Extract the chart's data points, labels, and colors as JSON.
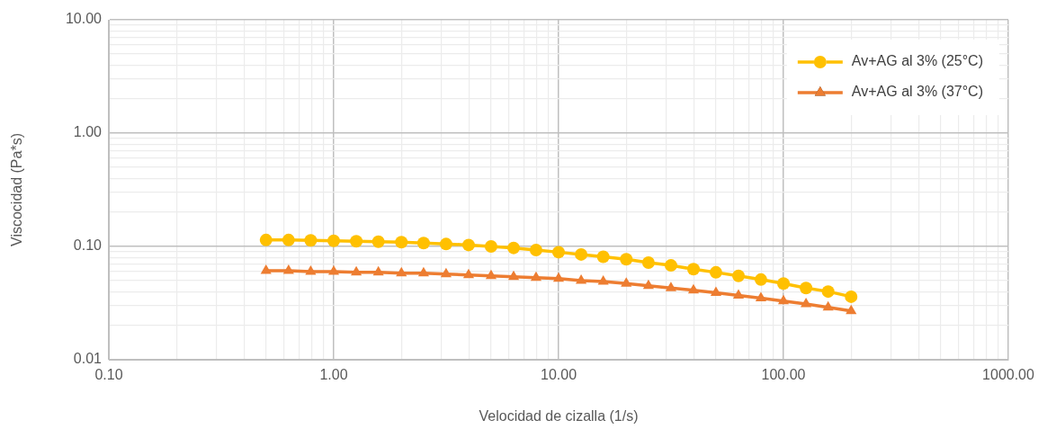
{
  "chart_data": {
    "type": "line",
    "xlabel": "Velocidad de cizalla (1/s)",
    "ylabel": "Viscocidad (Pa*s)",
    "x": [
      0.5,
      0.63,
      0.79,
      1,
      1.26,
      1.58,
      2,
      2.51,
      3.16,
      3.98,
      5.01,
      6.31,
      7.94,
      10,
      12.6,
      15.8,
      20,
      25.1,
      31.6,
      39.8,
      50.1,
      63.1,
      79.4,
      100,
      126,
      158,
      200
    ],
    "series": [
      {
        "name": "Av+AG al 3% (25°C)",
        "color": "#ffc000",
        "marker": "circle",
        "values": [
          0.114,
          0.114,
          0.113,
          0.112,
          0.111,
          0.11,
          0.109,
          0.107,
          0.105,
          0.103,
          0.1,
          0.097,
          0.093,
          0.089,
          0.085,
          0.081,
          0.077,
          0.072,
          0.068,
          0.063,
          0.059,
          0.055,
          0.051,
          0.047,
          0.043,
          0.04,
          0.036
        ]
      },
      {
        "name": "Av+AG al 3% (37°C)",
        "color": "#ed7d31",
        "marker": "triangle",
        "values": [
          0.061,
          0.061,
          0.06,
          0.06,
          0.059,
          0.059,
          0.058,
          0.058,
          0.057,
          0.056,
          0.055,
          0.054,
          0.053,
          0.052,
          0.05,
          0.049,
          0.047,
          0.045,
          0.043,
          0.041,
          0.039,
          0.037,
          0.035,
          0.033,
          0.031,
          0.029,
          0.027
        ]
      }
    ],
    "log": "xy",
    "grid": true,
    "legend": "top right",
    "xlim": [
      0.1,
      1000
    ],
    "ylim": [
      0.01,
      10
    ],
    "xticks": [
      {
        "value": 0.1,
        "label": "0.10"
      },
      {
        "value": 0.2,
        "label": null
      },
      {
        "value": 0.3,
        "label": null
      },
      {
        "value": 0.4,
        "label": null
      },
      {
        "value": 0.5,
        "label": null
      },
      {
        "value": 0.6,
        "label": null
      },
      {
        "value": 0.7,
        "label": null
      },
      {
        "value": 0.8,
        "label": null
      },
      {
        "value": 0.9,
        "label": null
      },
      {
        "value": 1,
        "label": "1.00"
      },
      {
        "value": 2,
        "label": null
      },
      {
        "value": 3,
        "label": null
      },
      {
        "value": 4,
        "label": null
      },
      {
        "value": 5,
        "label": null
      },
      {
        "value": 6,
        "label": null
      },
      {
        "value": 7,
        "label": null
      },
      {
        "value": 8,
        "label": null
      },
      {
        "value": 9,
        "label": null
      },
      {
        "value": 10,
        "label": "10.00"
      },
      {
        "value": 20,
        "label": null
      },
      {
        "value": 30,
        "label": null
      },
      {
        "value": 40,
        "label": null
      },
      {
        "value": 50,
        "label": null
      },
      {
        "value": 60,
        "label": null
      },
      {
        "value": 70,
        "label": null
      },
      {
        "value": 80,
        "label": null
      },
      {
        "value": 90,
        "label": null
      },
      {
        "value": 100,
        "label": "100.00"
      },
      {
        "value": 200,
        "label": null
      },
      {
        "value": 300,
        "label": null
      },
      {
        "value": 400,
        "label": null
      },
      {
        "value": 500,
        "label": null
      },
      {
        "value": 600,
        "label": null
      },
      {
        "value": 700,
        "label": null
      },
      {
        "value": 800,
        "label": null
      },
      {
        "value": 900,
        "label": null
      },
      {
        "value": 1000,
        "label": "1000.00"
      }
    ],
    "yticks": [
      {
        "value": 0.01,
        "label": "0.01"
      },
      {
        "value": 0.02,
        "label": null
      },
      {
        "value": 0.03,
        "label": null
      },
      {
        "value": 0.04,
        "label": null
      },
      {
        "value": 0.05,
        "label": null
      },
      {
        "value": 0.06,
        "label": null
      },
      {
        "value": 0.07,
        "label": null
      },
      {
        "value": 0.08,
        "label": null
      },
      {
        "value": 0.09,
        "label": null
      },
      {
        "value": 0.1,
        "label": "0.10"
      },
      {
        "value": 0.2,
        "label": null
      },
      {
        "value": 0.3,
        "label": null
      },
      {
        "value": 0.4,
        "label": null
      },
      {
        "value": 0.5,
        "label": null
      },
      {
        "value": 0.6,
        "label": null
      },
      {
        "value": 0.7,
        "label": null
      },
      {
        "value": 0.8,
        "label": null
      },
      {
        "value": 0.9,
        "label": null
      },
      {
        "value": 1,
        "label": "1.00"
      },
      {
        "value": 2,
        "label": null
      },
      {
        "value": 3,
        "label": null
      },
      {
        "value": 4,
        "label": null
      },
      {
        "value": 5,
        "label": null
      },
      {
        "value": 6,
        "label": null
      },
      {
        "value": 7,
        "label": null
      },
      {
        "value": 8,
        "label": null
      },
      {
        "value": 9,
        "label": null
      },
      {
        "value": 10,
        "label": "10.00"
      }
    ]
  }
}
